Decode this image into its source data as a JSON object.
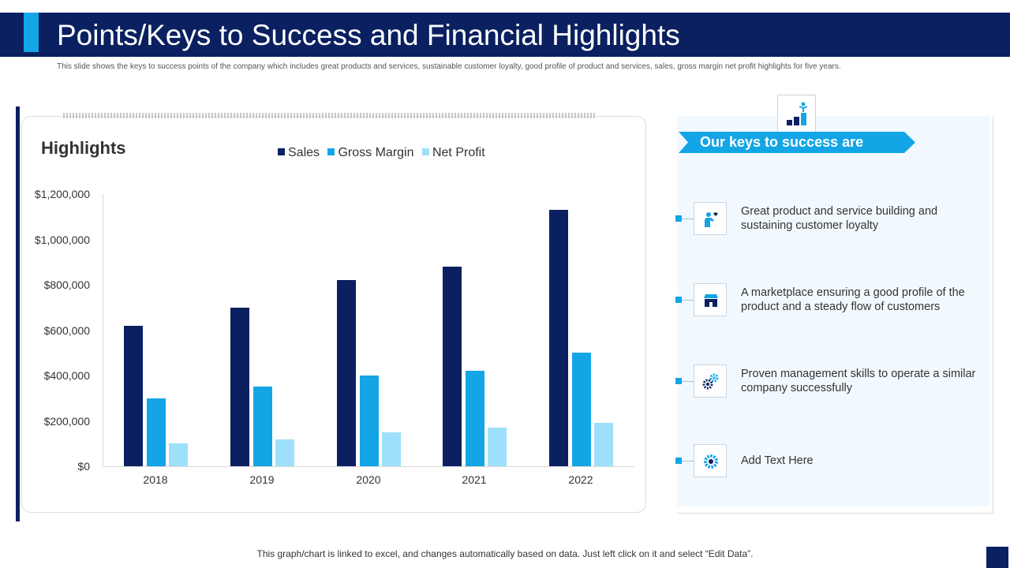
{
  "header": {
    "title": "Points/Keys to Success and Financial Highlights",
    "subtitle": "This slide shows the keys to success points of the company which includes great products and services, sustainable customer loyalty, good profile of product and services, sales, gross margin net profit highlights  for five years."
  },
  "chart_data": {
    "type": "bar",
    "title": "Highlights",
    "categories": [
      "2018",
      "2019",
      "2020",
      "2021",
      "2022"
    ],
    "series": [
      {
        "name": "Sales",
        "values": [
          620000,
          700000,
          820000,
          880000,
          1130000
        ],
        "color": "#0a2060"
      },
      {
        "name": "Gross Margin",
        "values": [
          300000,
          350000,
          400000,
          420000,
          500000
        ],
        "color": "#14a5e6"
      },
      {
        "name": "Net Profit",
        "values": [
          100000,
          120000,
          150000,
          170000,
          190000
        ],
        "color": "#9ee0fb"
      }
    ],
    "ylim": [
      0,
      1200000
    ],
    "yticks": [
      "$0",
      "$200,000",
      "$400,000",
      "$600,000",
      "$800,000",
      "$1,000,000",
      "$1,200,000"
    ],
    "xlabel": "",
    "ylabel": "",
    "legend": "top"
  },
  "keys": {
    "title": "Our keys to success are",
    "items": [
      {
        "text": "Great product and service building and sustaining customer loyalty",
        "icon": "customer-love-icon"
      },
      {
        "text": "A marketplace ensuring a good profile of the product and a steady flow of customers",
        "icon": "store-icon"
      },
      {
        "text": "Proven management skills to operate a similar company successfully",
        "icon": "gears-icon"
      },
      {
        "text": "Add Text Here",
        "icon": "gear-badge-icon"
      }
    ]
  },
  "footer": {
    "note": "This graph/chart is linked to excel,  and changes automatically based on data. Just left click on it and select “Edit Data”."
  },
  "colors": {
    "navy": "#0a2060",
    "accent": "#14a5e6",
    "light": "#9ee0fb"
  }
}
